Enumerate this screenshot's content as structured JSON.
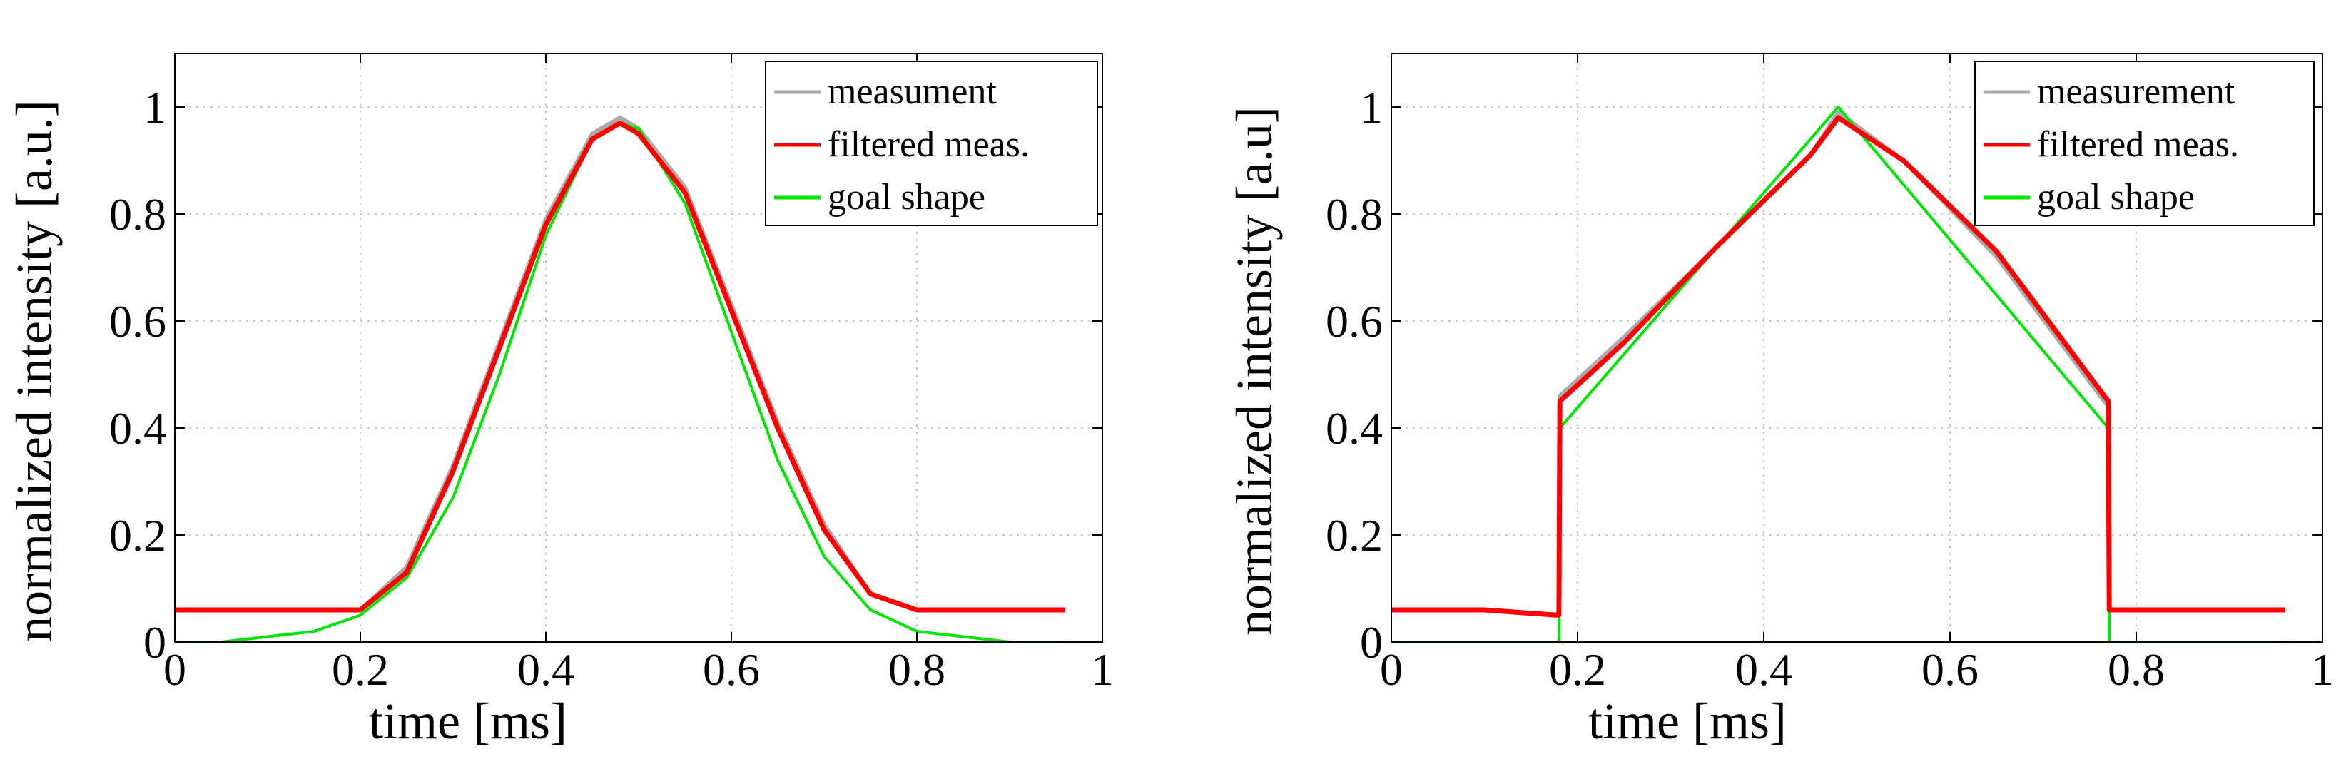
{
  "chart_data": [
    {
      "type": "line",
      "title": "",
      "xlabel": "time [ms]",
      "ylabel": "normalized intensity [a.u.]",
      "xlim": [
        0,
        1
      ],
      "ylim": [
        0,
        1.1
      ],
      "xticks": [
        0,
        0.2,
        0.4,
        0.6,
        0.8,
        1
      ],
      "xtick_labels": [
        "0",
        "0.2",
        "0.4",
        "0.6",
        "0.8",
        "1"
      ],
      "yticks": [
        0,
        0.2,
        0.4,
        0.6,
        0.8,
        1
      ],
      "ytick_labels": [
        "0",
        "0.2",
        "0.4",
        "0.6",
        "0.8",
        "1"
      ],
      "grid": true,
      "legend_position": "top-right",
      "colors": {
        "measurement": "#aaaaaa",
        "filtered": "#ff0000",
        "goal": "#00e600"
      },
      "series": [
        {
          "name": "measument",
          "color": "#aaaaaa",
          "x": [
            0,
            0.1,
            0.2,
            0.25,
            0.3,
            0.35,
            0.4,
            0.45,
            0.48,
            0.5,
            0.55,
            0.6,
            0.65,
            0.7,
            0.75,
            0.8,
            0.9,
            0.96
          ],
          "values": [
            0.06,
            0.06,
            0.06,
            0.14,
            0.33,
            0.56,
            0.79,
            0.95,
            0.98,
            0.96,
            0.85,
            0.63,
            0.41,
            0.22,
            0.09,
            0.06,
            0.06,
            0.06
          ]
        },
        {
          "name": "filtered meas.",
          "color": "#ff0000",
          "x": [
            0,
            0.1,
            0.2,
            0.25,
            0.3,
            0.35,
            0.4,
            0.45,
            0.48,
            0.5,
            0.55,
            0.6,
            0.65,
            0.7,
            0.75,
            0.8,
            0.9,
            0.96
          ],
          "values": [
            0.06,
            0.06,
            0.06,
            0.13,
            0.32,
            0.55,
            0.78,
            0.94,
            0.97,
            0.95,
            0.84,
            0.62,
            0.4,
            0.21,
            0.09,
            0.06,
            0.06,
            0.06
          ]
        },
        {
          "name": "goal shape",
          "color": "#00e600",
          "x": [
            0,
            0.05,
            0.1,
            0.15,
            0.2,
            0.25,
            0.3,
            0.35,
            0.4,
            0.45,
            0.48,
            0.5,
            0.55,
            0.6,
            0.65,
            0.7,
            0.75,
            0.8,
            0.85,
            0.9,
            0.96
          ],
          "values": [
            0.0,
            0.0,
            0.01,
            0.02,
            0.05,
            0.12,
            0.27,
            0.5,
            0.76,
            0.94,
            0.97,
            0.96,
            0.82,
            0.58,
            0.34,
            0.16,
            0.06,
            0.02,
            0.01,
            0.0,
            0.0
          ]
        }
      ]
    },
    {
      "type": "line",
      "title": "",
      "xlabel": "time [ms]",
      "ylabel": "normalized intensity [a.u]",
      "xlim": [
        0,
        1
      ],
      "ylim": [
        0,
        1.1
      ],
      "xticks": [
        0,
        0.2,
        0.4,
        0.6,
        0.8,
        1
      ],
      "xtick_labels": [
        "0",
        "0.2",
        "0.4",
        "0.6",
        "0.8",
        "1"
      ],
      "yticks": [
        0,
        0.2,
        0.4,
        0.6,
        0.8,
        1
      ],
      "ytick_labels": [
        "0",
        "0.2",
        "0.4",
        "0.6",
        "0.8",
        "1"
      ],
      "grid": true,
      "legend_position": "top-right",
      "colors": {
        "measurement": "#aaaaaa",
        "filtered": "#ff0000",
        "goal": "#00e600"
      },
      "series": [
        {
          "name": "measurement",
          "color": "#aaaaaa",
          "x": [
            0,
            0.1,
            0.18,
            0.181,
            0.25,
            0.35,
            0.45,
            0.48,
            0.55,
            0.65,
            0.77,
            0.771,
            0.85,
            0.96
          ],
          "values": [
            0.06,
            0.06,
            0.05,
            0.46,
            0.57,
            0.74,
            0.91,
            0.99,
            0.9,
            0.72,
            0.44,
            0.06,
            0.06,
            0.06
          ]
        },
        {
          "name": "filtered meas.",
          "color": "#ff0000",
          "x": [
            0,
            0.1,
            0.18,
            0.181,
            0.25,
            0.35,
            0.45,
            0.48,
            0.55,
            0.65,
            0.77,
            0.771,
            0.85,
            0.96
          ],
          "values": [
            0.06,
            0.06,
            0.05,
            0.45,
            0.56,
            0.74,
            0.91,
            0.98,
            0.9,
            0.73,
            0.45,
            0.06,
            0.06,
            0.06
          ]
        },
        {
          "name": "goal shape",
          "color": "#00e600",
          "x": [
            0,
            0.18,
            0.181,
            0.48,
            0.77,
            0.771,
            0.96
          ],
          "values": [
            0,
            0,
            0.4,
            1.0,
            0.4,
            0,
            0
          ]
        }
      ]
    }
  ]
}
